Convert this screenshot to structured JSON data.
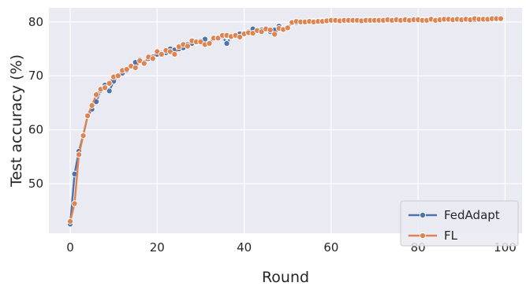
{
  "chart_data": {
    "type": "line",
    "title": "",
    "xlabel": "Round",
    "ylabel": "Test accuracy (%)",
    "xlim": [
      -4.9,
      103.9
    ],
    "ylim": [
      40.8,
      82.6
    ],
    "xticks": [
      0,
      20,
      40,
      60,
      80,
      100
    ],
    "yticks": [
      50,
      60,
      70,
      80
    ],
    "grid": true,
    "background": "#eaeaf2",
    "legend_position": "bottom-right",
    "marker": "circle",
    "series": [
      {
        "name": "FedAdapt",
        "color": "#4c72b0",
        "x": [
          0,
          1,
          2,
          3,
          4,
          5,
          6,
          7,
          8,
          9,
          10,
          11,
          12,
          13,
          14,
          15,
          16,
          17,
          18,
          19,
          20,
          21,
          22,
          23,
          24,
          25,
          26,
          27,
          28,
          29,
          30,
          31,
          32,
          33,
          34,
          35,
          36,
          37,
          38,
          39,
          40,
          41,
          42,
          43,
          44,
          45,
          46,
          47,
          48,
          49,
          50,
          51,
          52,
          53,
          54,
          55,
          56,
          57,
          58,
          59,
          60,
          61,
          62,
          63,
          64,
          65,
          66,
          67,
          68,
          69,
          70,
          71,
          72,
          73,
          74,
          75,
          76,
          77,
          78,
          79,
          80,
          81,
          82,
          83,
          84,
          85,
          86,
          87,
          88,
          89,
          90,
          91,
          92,
          93,
          94,
          95,
          96,
          97,
          98,
          99
        ],
        "y": [
          42.5,
          51.8,
          56.0,
          59.0,
          62.5,
          63.8,
          65.2,
          67.3,
          68.3,
          67.2,
          69.0,
          70.0,
          70.5,
          71.0,
          71.8,
          72.5,
          73.0,
          72.5,
          73.2,
          73.5,
          74.0,
          74.2,
          74.3,
          75.0,
          74.8,
          75.0,
          75.2,
          75.8,
          76.0,
          76.2,
          76.5,
          76.8,
          76.0,
          77.0,
          77.0,
          77.3,
          76.0,
          77.2,
          77.5,
          77.8,
          77.8,
          78.2,
          78.7,
          78.3,
          78.5,
          78.7,
          78.2,
          78.5,
          79.2,
          78.6,
          79.0,
          79.8,
          79.9,
          80.0,
          80.0,
          80.1,
          80.1,
          80.1,
          80.2,
          80.1,
          80.2,
          80.2,
          80.1,
          80.3,
          80.2,
          80.2,
          80.3,
          80.2,
          80.3,
          80.2,
          80.3,
          80.3,
          80.2,
          80.3,
          80.4,
          80.3,
          80.3,
          80.4,
          80.3,
          80.4,
          80.4,
          80.4,
          80.3,
          80.5,
          80.4,
          80.5,
          80.4,
          80.5,
          80.4,
          80.5,
          80.5,
          80.4,
          80.5,
          80.4,
          80.6,
          80.5,
          80.5,
          80.6,
          80.5,
          80.6
        ]
      },
      {
        "name": "FL",
        "color": "#dd8452",
        "x": [
          0,
          1,
          2,
          3,
          4,
          5,
          6,
          7,
          8,
          9,
          10,
          11,
          12,
          13,
          14,
          15,
          16,
          17,
          18,
          19,
          20,
          21,
          22,
          23,
          24,
          25,
          26,
          27,
          28,
          29,
          30,
          31,
          32,
          33,
          34,
          35,
          36,
          37,
          38,
          39,
          40,
          41,
          42,
          43,
          44,
          45,
          46,
          47,
          48,
          49,
          50,
          51,
          52,
          53,
          54,
          55,
          56,
          57,
          58,
          59,
          60,
          61,
          62,
          63,
          64,
          65,
          66,
          67,
          68,
          69,
          70,
          71,
          72,
          73,
          74,
          75,
          76,
          77,
          78,
          79,
          80,
          81,
          82,
          83,
          84,
          85,
          86,
          87,
          88,
          89,
          90,
          91,
          92,
          93,
          94,
          95,
          96,
          97,
          98,
          99
        ],
        "y": [
          43.0,
          46.3,
          55.4,
          58.9,
          62.6,
          64.5,
          66.5,
          67.5,
          67.8,
          68.6,
          69.8,
          70.0,
          71.0,
          71.2,
          71.8,
          71.5,
          72.8,
          72.3,
          73.5,
          73.2,
          74.5,
          74.0,
          74.7,
          74.5,
          74.0,
          75.4,
          75.8,
          75.5,
          76.5,
          76.3,
          76.3,
          75.8,
          76.0,
          77.0,
          77.0,
          77.5,
          77.5,
          77.3,
          77.5,
          77.2,
          77.8,
          78.0,
          77.9,
          78.4,
          78.2,
          78.7,
          78.5,
          77.7,
          78.8,
          78.6,
          78.9,
          79.9,
          80.1,
          80.0,
          80.0,
          80.1,
          80.0,
          80.1,
          80.1,
          80.2,
          80.3,
          80.3,
          80.2,
          80.3,
          80.3,
          80.3,
          80.3,
          80.2,
          80.3,
          80.3,
          80.3,
          80.3,
          80.3,
          80.4,
          80.3,
          80.4,
          80.3,
          80.4,
          80.3,
          80.4,
          80.4,
          80.3,
          80.3,
          80.5,
          80.3,
          80.4,
          80.5,
          80.5,
          80.4,
          80.5,
          80.4,
          80.5,
          80.4,
          80.6,
          80.5,
          80.5,
          80.5,
          80.6,
          80.6,
          80.6
        ]
      }
    ]
  }
}
